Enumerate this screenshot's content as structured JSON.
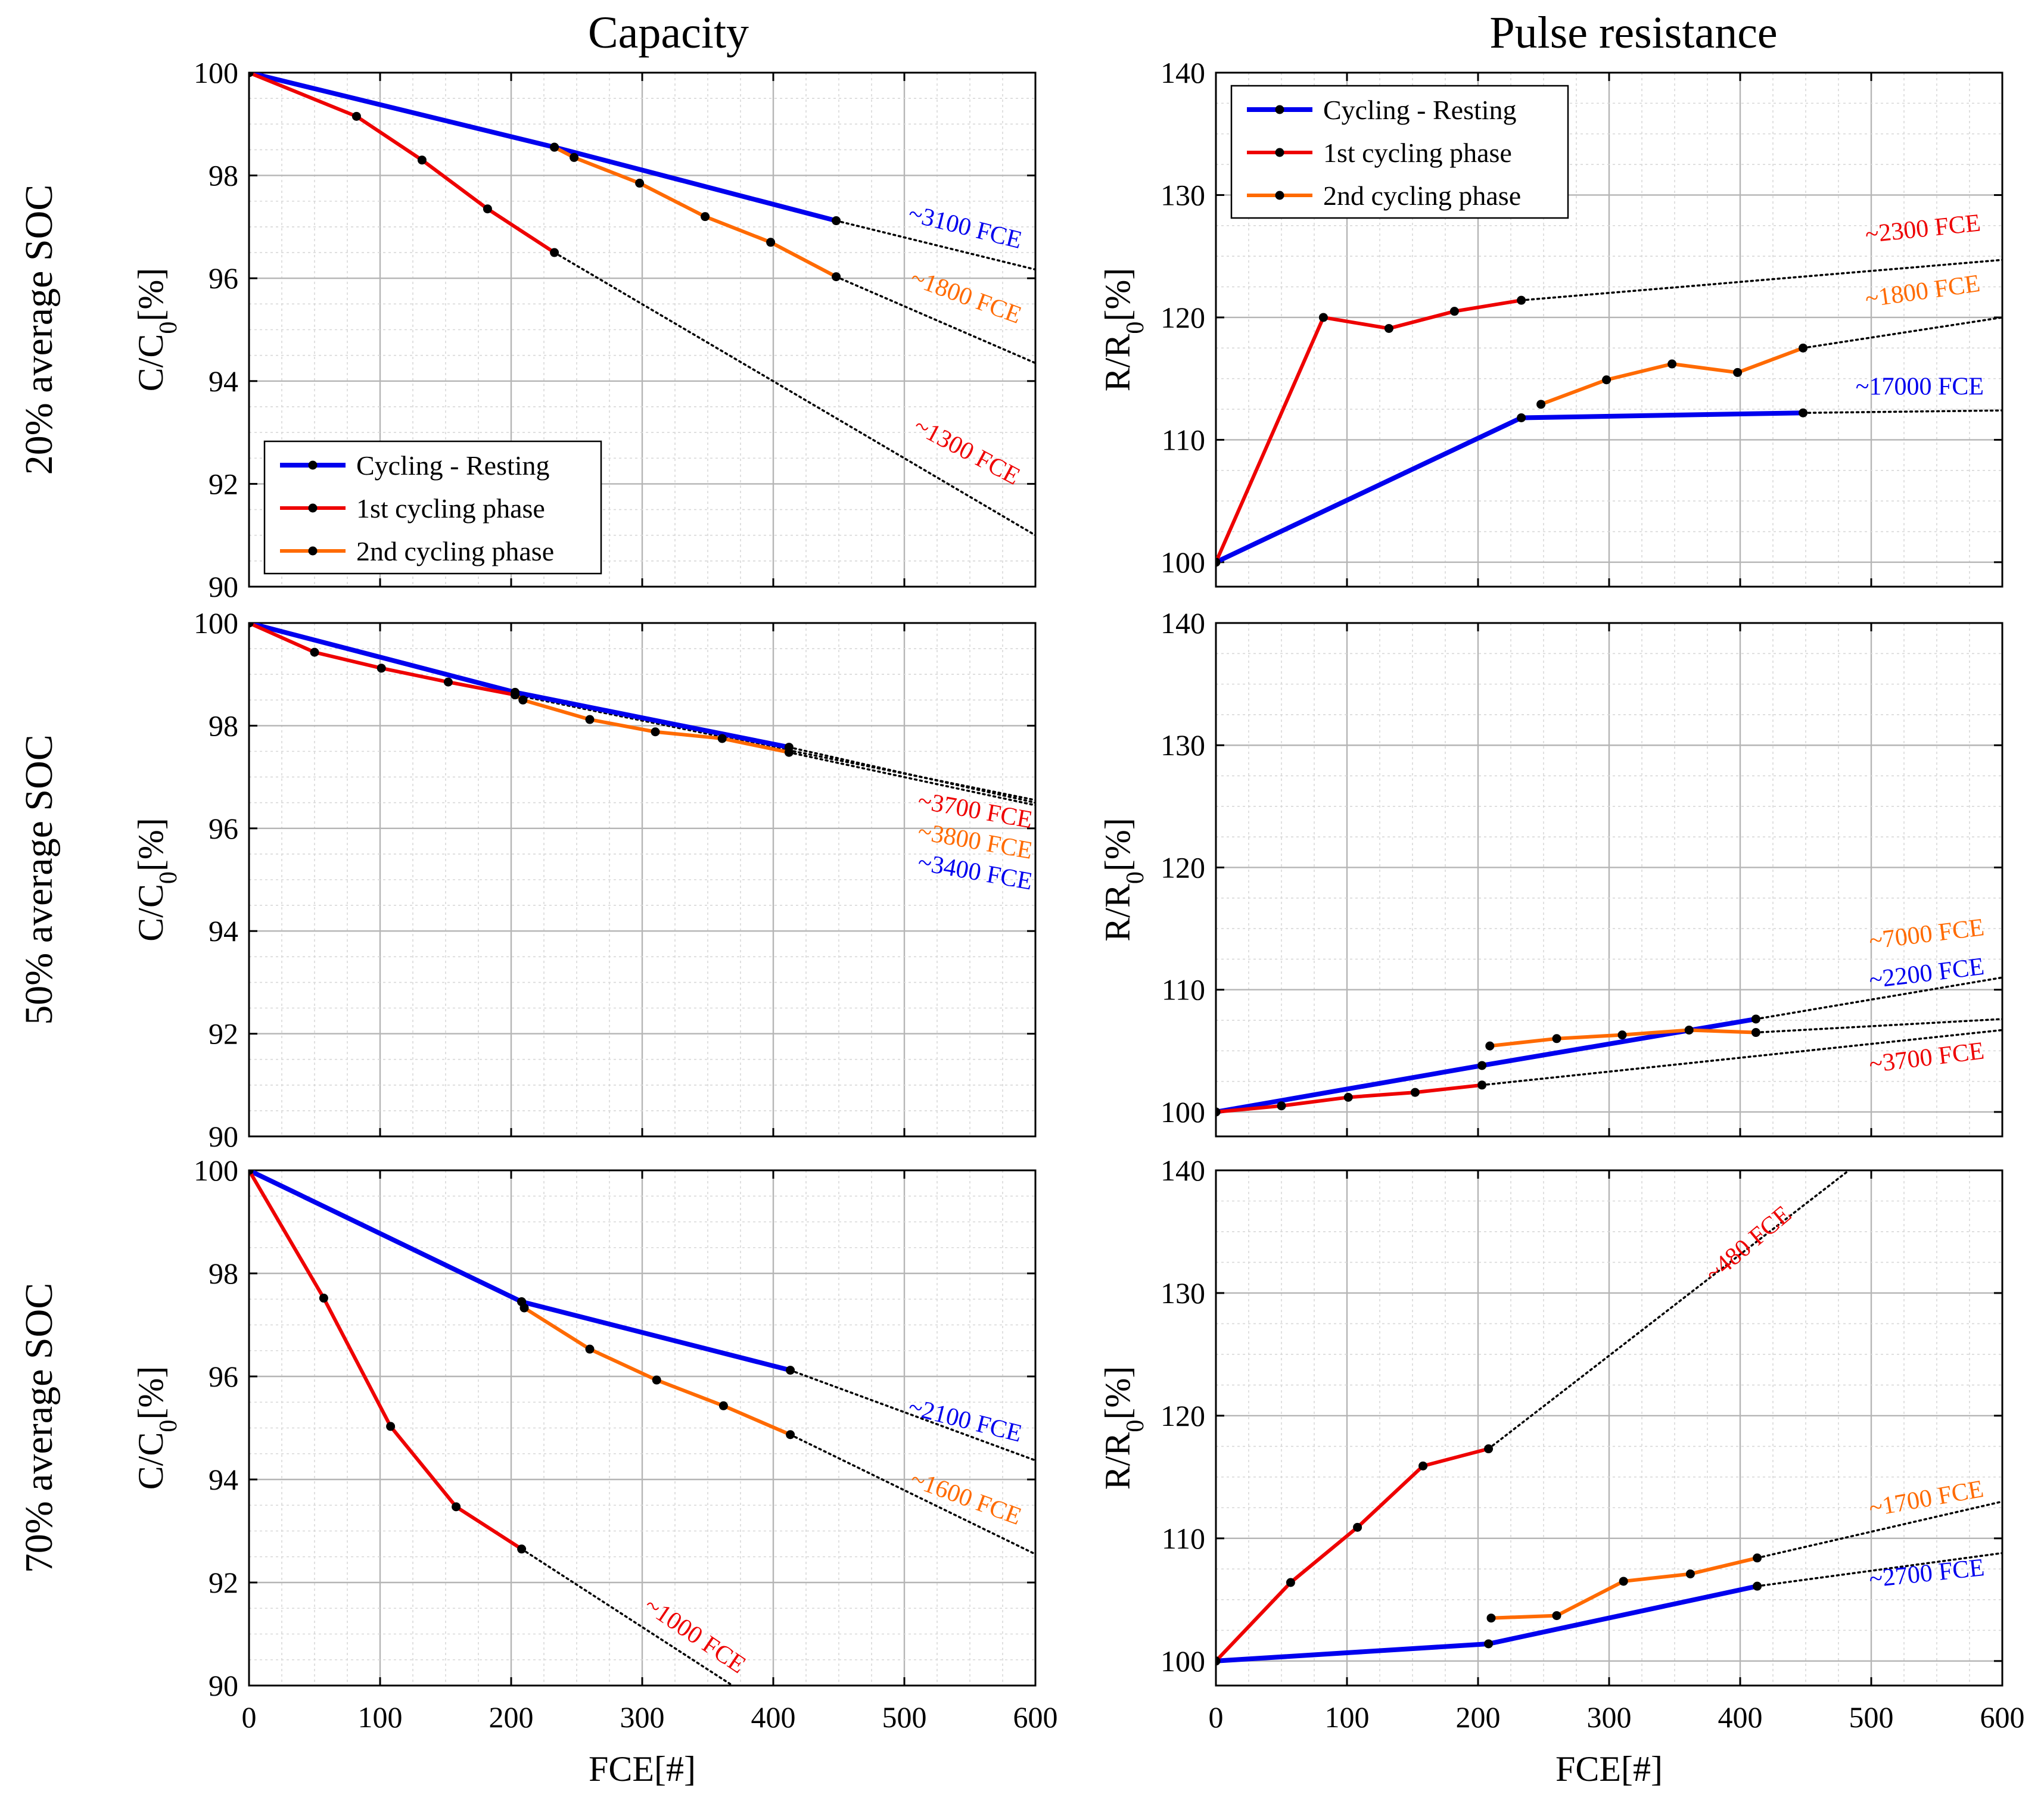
{
  "chart_data": {
    "type": "line",
    "column_titles": [
      "Capacity",
      "Pulse resistance"
    ],
    "row_labels": [
      "20% average SOC",
      "50% average SOC",
      "70% average SOC"
    ],
    "xlabel": "FCE[#]",
    "legend": [
      "Cycling - Resting",
      "1st cycling phase",
      "2nd cycling phase"
    ],
    "colors": {
      "Cycling - Resting": "#0000ee",
      "1st cycling phase": "#ee0000",
      "2nd cycling phase": "#ff6a00",
      "extrapolation": "#000000"
    },
    "panels": [
      {
        "id": "cap-20",
        "row": 0,
        "col": 0,
        "ylabel_main": "C/C",
        "ylabel_sub": "0",
        "ylabel_tail": "[%]",
        "xlim": [
          0,
          600
        ],
        "ylim": [
          90,
          100
        ],
        "xticks": [
          0,
          100,
          200,
          300,
          400,
          500,
          600
        ],
        "xtick_labels": [],
        "yticks": [
          90,
          92,
          94,
          96,
          98,
          100
        ],
        "ytick_labels": [
          "90",
          "92",
          "94",
          "96",
          "98",
          "100"
        ],
        "legend_position": "lower-left",
        "series": [
          {
            "name": "Cycling - Resting",
            "x": [
              0,
              233,
              448
            ],
            "y": [
              100,
              98.55,
              97.12
            ]
          },
          {
            "name": "1st cycling phase",
            "x": [
              0,
              82,
              132,
              182,
              233
            ],
            "y": [
              100,
              99.15,
              98.3,
              97.35,
              96.5
            ]
          },
          {
            "name": "2nd cycling phase",
            "x": [
              233,
              248,
              298,
              348,
              398,
              448
            ],
            "y": [
              98.55,
              98.35,
              97.85,
              97.2,
              96.7,
              96.03
            ]
          }
        ],
        "extrapolations": [
          {
            "x": [
              448,
              600
            ],
            "y": [
              97.12,
              96.17
            ]
          },
          {
            "x": [
              448,
              600
            ],
            "y": [
              96.03,
              94.35
            ]
          },
          {
            "x": [
              233,
              600
            ],
            "y": [
              96.5,
              91.0
            ]
          }
        ],
        "annotations": [
          {
            "text": "~3100 FCE",
            "series": "Cycling - Resting",
            "x": 545,
            "y": 96.85,
            "angle": 14
          },
          {
            "text": "~1800 FCE",
            "series": "2nd cycling phase",
            "x": 545,
            "y": 95.5,
            "angle": 20
          },
          {
            "text": "~1300 FCE",
            "series": "1st cycling phase",
            "x": 545,
            "y": 92.5,
            "angle": 28
          }
        ]
      },
      {
        "id": "res-20",
        "row": 0,
        "col": 1,
        "ylabel_main": "R/R",
        "ylabel_sub": "0",
        "ylabel_tail": "[%]",
        "xlim": [
          0,
          600
        ],
        "ylim": [
          98,
          140
        ],
        "xticks": [
          0,
          100,
          200,
          300,
          400,
          500,
          600
        ],
        "xtick_labels": [],
        "yticks": [
          100,
          110,
          120,
          130,
          140
        ],
        "ytick_labels": [
          "100",
          "110",
          "120",
          "130",
          "140"
        ],
        "legend_position": "upper-left",
        "series": [
          {
            "name": "Cycling - Resting",
            "x": [
              0,
              233,
              448
            ],
            "y": [
              100,
              111.8,
              112.2
            ]
          },
          {
            "name": "1st cycling phase",
            "x": [
              0,
              82,
              132,
              182,
              233
            ],
            "y": [
              100,
              120.0,
              119.1,
              120.5,
              121.4
            ]
          },
          {
            "name": "2nd cycling phase",
            "x": [
              248,
              298,
              348,
              398,
              448
            ],
            "y": [
              112.9,
              114.9,
              116.2,
              115.5,
              117.5
            ]
          }
        ],
        "extrapolations": [
          {
            "x": [
              448,
              600
            ],
            "y": [
              112.2,
              112.4
            ]
          },
          {
            "x": [
              448,
              600
            ],
            "y": [
              117.5,
              120.0
            ]
          },
          {
            "x": [
              233,
              600
            ],
            "y": [
              121.4,
              124.7
            ]
          }
        ],
        "annotations": [
          {
            "text": "~2300 FCE",
            "series": "1st cycling phase",
            "x": 540,
            "y": 126.6,
            "angle": -6
          },
          {
            "text": "~1800 FCE",
            "series": "2nd cycling phase",
            "x": 540,
            "y": 121.5,
            "angle": -8
          },
          {
            "text": "~17000 FCE",
            "series": "Cycling - Resting",
            "x": 537,
            "y": 113.7,
            "angle": 0
          }
        ]
      },
      {
        "id": "cap-50",
        "row": 1,
        "col": 0,
        "ylabel_main": "C/C",
        "ylabel_sub": "0",
        "ylabel_tail": "[%]",
        "xlim": [
          0,
          600
        ],
        "ylim": [
          90,
          100
        ],
        "xticks": [
          0,
          100,
          200,
          300,
          400,
          500,
          600
        ],
        "xtick_labels": [],
        "yticks": [
          90,
          92,
          94,
          96,
          98,
          100
        ],
        "ytick_labels": [
          "90",
          "92",
          "94",
          "96",
          "98",
          "100"
        ],
        "series": [
          {
            "name": "Cycling - Resting",
            "x": [
              0,
              203,
              412
            ],
            "y": [
              100,
              98.65,
              97.58
            ]
          },
          {
            "name": "1st cycling phase",
            "x": [
              0,
              50,
              101,
              152,
              203
            ],
            "y": [
              100,
              99.43,
              99.12,
              98.85,
              98.6
            ]
          },
          {
            "name": "2nd cycling phase",
            "x": [
              203,
              209,
              260,
              310,
              361,
              412
            ],
            "y": [
              98.6,
              98.5,
              98.12,
              97.88,
              97.75,
              97.48
            ]
          }
        ],
        "extrapolations": [
          {
            "x": [
              412,
              600
            ],
            "y": [
              97.58,
              96.5
            ]
          },
          {
            "x": [
              412,
              600
            ],
            "y": [
              97.48,
              96.45
            ]
          },
          {
            "x": [
              203,
              600
            ],
            "y": [
              98.6,
              96.55
            ]
          }
        ],
        "annotations": [
          {
            "text": "~3700 FCE",
            "series": "1st cycling phase",
            "x": 553,
            "y": 96.2,
            "angle": 10
          },
          {
            "text": "~3800 FCE",
            "series": "2nd cycling phase",
            "x": 553,
            "y": 95.6,
            "angle": 10
          },
          {
            "text": "~3400 FCE",
            "series": "Cycling - Resting",
            "x": 553,
            "y": 95.0,
            "angle": 10
          }
        ]
      },
      {
        "id": "res-50",
        "row": 1,
        "col": 1,
        "ylabel_main": "R/R",
        "ylabel_sub": "0",
        "ylabel_tail": "[%]",
        "xlim": [
          0,
          600
        ],
        "ylim": [
          98,
          140
        ],
        "xticks": [
          0,
          100,
          200,
          300,
          400,
          500,
          600
        ],
        "xtick_labels": [],
        "yticks": [
          100,
          110,
          120,
          130,
          140
        ],
        "ytick_labels": [
          "100",
          "110",
          "120",
          "130",
          "140"
        ],
        "series": [
          {
            "name": "Cycling - Resting",
            "x": [
              0,
              203,
              412
            ],
            "y": [
              100,
              103.8,
              107.6
            ]
          },
          {
            "name": "1st cycling phase",
            "x": [
              0,
              50,
              101,
              152,
              203
            ],
            "y": [
              100,
              100.5,
              101.2,
              101.6,
              102.2
            ]
          },
          {
            "name": "2nd cycling phase",
            "x": [
              209,
              260,
              310,
              361,
              412
            ],
            "y": [
              105.4,
              106.0,
              106.3,
              106.7,
              106.5
            ]
          }
        ],
        "extrapolations": [
          {
            "x": [
              412,
              600
            ],
            "y": [
              107.6,
              111.0
            ]
          },
          {
            "x": [
              412,
              600
            ],
            "y": [
              106.5,
              107.6
            ]
          },
          {
            "x": [
              203,
              600
            ],
            "y": [
              102.2,
              106.7
            ]
          }
        ],
        "annotations": [
          {
            "text": "~7000 FCE",
            "series": "2nd cycling phase",
            "x": 543,
            "y": 113.9,
            "angle": -7
          },
          {
            "text": "~2200 FCE",
            "series": "Cycling - Resting",
            "x": 543,
            "y": 110.7,
            "angle": -7
          },
          {
            "text": "~3700 FCE",
            "series": "1st cycling phase",
            "x": 543,
            "y": 103.8,
            "angle": -7
          }
        ]
      },
      {
        "id": "cap-70",
        "row": 2,
        "col": 0,
        "ylabel_main": "C/C",
        "ylabel_sub": "0",
        "ylabel_tail": "[%]",
        "xlim": [
          0,
          600
        ],
        "ylim": [
          90,
          100
        ],
        "xticks": [
          0,
          100,
          200,
          300,
          400,
          500,
          600
        ],
        "xtick_labels": [
          "0",
          "100",
          "200",
          "300",
          "400",
          "500",
          "600"
        ],
        "yticks": [
          90,
          92,
          94,
          96,
          98,
          100
        ],
        "ytick_labels": [
          "90",
          "92",
          "94",
          "96",
          "98",
          "100"
        ],
        "series": [
          {
            "name": "Cycling - Resting",
            "x": [
              0,
              208,
              413
            ],
            "y": [
              100,
              97.45,
              96.12
            ]
          },
          {
            "name": "1st cycling phase",
            "x": [
              0,
              57,
              108,
              158,
              208
            ],
            "y": [
              100,
              97.52,
              95.03,
              93.47,
              92.65
            ]
          },
          {
            "name": "2nd cycling phase",
            "x": [
              208,
              210,
              260,
              311,
              362,
              413
            ],
            "y": [
              97.45,
              97.33,
              96.53,
              95.93,
              95.43,
              94.87
            ]
          }
        ],
        "extrapolations": [
          {
            "x": [
              413,
              600
            ],
            "y": [
              96.12,
              94.37
            ]
          },
          {
            "x": [
              413,
              600
            ],
            "y": [
              94.87,
              92.55
            ]
          },
          {
            "x": [
              208,
              375
            ],
            "y": [
              92.65,
              89.9
            ]
          }
        ],
        "annotations": [
          {
            "text": "~2100 FCE",
            "series": "Cycling - Resting",
            "x": 545,
            "y": 95.0,
            "angle": 14
          },
          {
            "text": "~1600 FCE",
            "series": "2nd cycling phase",
            "x": 545,
            "y": 93.5,
            "angle": 20
          },
          {
            "text": "~1000 FCE",
            "series": "1st cycling phase",
            "x": 337,
            "y": 90.85,
            "angle": 34
          }
        ]
      },
      {
        "id": "res-70",
        "row": 2,
        "col": 1,
        "ylabel_main": "R/R",
        "ylabel_sub": "0",
        "ylabel_tail": "[%]",
        "xlim": [
          0,
          600
        ],
        "ylim": [
          98,
          140
        ],
        "xticks": [
          0,
          100,
          200,
          300,
          400,
          500,
          600
        ],
        "xtick_labels": [
          "0",
          "100",
          "200",
          "300",
          "400",
          "500",
          "600"
        ],
        "yticks": [
          100,
          110,
          120,
          130,
          140
        ],
        "ytick_labels": [
          "100",
          "110",
          "120",
          "130",
          "140"
        ],
        "series": [
          {
            "name": "Cycling - Resting",
            "x": [
              0,
              208,
              413
            ],
            "y": [
              100,
              101.4,
              106.1
            ]
          },
          {
            "name": "1st cycling phase",
            "x": [
              0,
              57,
              108,
              158,
              208
            ],
            "y": [
              100,
              106.4,
              110.9,
              115.9,
              117.3
            ]
          },
          {
            "name": "2nd cycling phase",
            "x": [
              210,
              260,
              311,
              362,
              413
            ],
            "y": [
              103.5,
              103.7,
              106.5,
              107.1,
              108.4
            ]
          }
        ],
        "extrapolations": [
          {
            "x": [
              413,
              600
            ],
            "y": [
              106.1,
              108.8
            ]
          },
          {
            "x": [
              413,
              600
            ],
            "y": [
              108.4,
              113.0
            ]
          },
          {
            "x": [
              208,
              483
            ],
            "y": [
              117.3,
              140.0
            ]
          }
        ],
        "annotations": [
          {
            "text": "~480 FCE",
            "series": "1st cycling phase",
            "x": 410,
            "y": 133.5,
            "angle": -40
          },
          {
            "text": "~1700 FCE",
            "series": "2nd cycling phase",
            "x": 543,
            "y": 112.6,
            "angle": -10
          },
          {
            "text": "~2700 FCE",
            "series": "Cycling - Resting",
            "x": 543,
            "y": 106.5,
            "angle": -6
          }
        ]
      }
    ]
  }
}
